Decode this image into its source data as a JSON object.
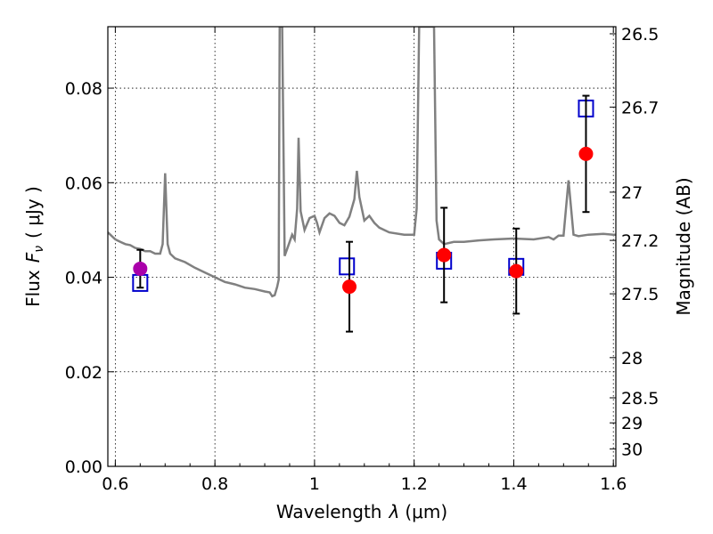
{
  "chart_data": {
    "type": "scatter",
    "xlabel": "Wavelength",
    "xlabel_symbol": "λ",
    "xlabel_unit": "(μm)",
    "ylabel": "Flux",
    "ylabel_symbol": "F",
    "ylabel_subscript": "ν",
    "ylabel_unit": "( μJy )",
    "y2label": "Magnitude (AB)",
    "xlim": [
      0.585,
      1.605
    ],
    "ylim": [
      0.0,
      0.093
    ],
    "grid": true,
    "x_ticks": [
      {
        "value": 0.6,
        "label": "0.6"
      },
      {
        "value": 0.8,
        "label": "0.8"
      },
      {
        "value": 1.0,
        "label": "1"
      },
      {
        "value": 1.2,
        "label": "1.2"
      },
      {
        "value": 1.4,
        "label": "1.4"
      },
      {
        "value": 1.6,
        "label": "1.6"
      }
    ],
    "y_ticks": [
      {
        "value": 0.0,
        "label": "0.00"
      },
      {
        "value": 0.02,
        "label": "0.02"
      },
      {
        "value": 0.04,
        "label": "0.04"
      },
      {
        "value": 0.06,
        "label": "0.06"
      },
      {
        "value": 0.08,
        "label": "0.08"
      }
    ],
    "y2_ticks": [
      {
        "flux": 0.0915,
        "label": "26.5"
      },
      {
        "flux": 0.076,
        "label": "26.7"
      },
      {
        "flux": 0.058,
        "label": "27"
      },
      {
        "flux": 0.0478,
        "label": "27.2"
      },
      {
        "flux": 0.0365,
        "label": "27.5"
      },
      {
        "flux": 0.023,
        "label": "28"
      },
      {
        "flux": 0.0145,
        "label": "28.5"
      },
      {
        "flux": 0.0092,
        "label": "29"
      },
      {
        "flux": 0.0037,
        "label": "30"
      }
    ],
    "series": [
      {
        "name": "model spectrum",
        "kind": "line",
        "color": "#808080",
        "x": [
          0.585,
          0.59,
          0.6,
          0.61,
          0.62,
          0.63,
          0.64,
          0.65,
          0.66,
          0.67,
          0.68,
          0.69,
          0.695,
          0.7,
          0.705,
          0.71,
          0.72,
          0.74,
          0.76,
          0.78,
          0.8,
          0.82,
          0.84,
          0.86,
          0.88,
          0.9,
          0.91,
          0.915,
          0.92,
          0.925,
          0.928,
          0.93,
          0.935,
          0.94,
          0.945,
          0.95,
          0.955,
          0.96,
          0.965,
          0.968,
          0.972,
          0.98,
          0.99,
          1.0,
          1.005,
          1.01,
          1.02,
          1.03,
          1.04,
          1.05,
          1.06,
          1.07,
          1.08,
          1.085,
          1.09,
          1.1,
          1.11,
          1.12,
          1.125,
          1.13,
          1.15,
          1.18,
          1.2,
          1.205,
          1.21,
          1.215,
          1.225,
          1.235,
          1.24,
          1.245,
          1.25,
          1.26,
          1.28,
          1.3,
          1.33,
          1.36,
          1.4,
          1.44,
          1.47,
          1.48,
          1.49,
          1.5,
          1.51,
          1.52,
          1.53,
          1.55,
          1.58,
          1.6,
          1.605
        ],
        "y": [
          0.0495,
          0.049,
          0.048,
          0.0475,
          0.047,
          0.0468,
          0.0462,
          0.046,
          0.0455,
          0.0455,
          0.045,
          0.045,
          0.047,
          0.062,
          0.047,
          0.045,
          0.044,
          0.0432,
          0.042,
          0.041,
          0.04,
          0.039,
          0.0385,
          0.0378,
          0.0375,
          0.037,
          0.0368,
          0.036,
          0.0362,
          0.038,
          0.0395,
          0.093,
          0.093,
          0.0445,
          0.046,
          0.0475,
          0.049,
          0.048,
          0.0545,
          0.0695,
          0.054,
          0.05,
          0.0525,
          0.053,
          0.0515,
          0.0495,
          0.0525,
          0.0535,
          0.053,
          0.0515,
          0.051,
          0.0528,
          0.0565,
          0.0625,
          0.057,
          0.052,
          0.053,
          0.0515,
          0.051,
          0.0505,
          0.0495,
          0.049,
          0.049,
          0.0545,
          0.093,
          0.093,
          0.093,
          0.093,
          0.093,
          0.052,
          0.048,
          0.047,
          0.0475,
          0.0475,
          0.0478,
          0.048,
          0.0482,
          0.048,
          0.0485,
          0.048,
          0.0488,
          0.0488,
          0.0605,
          0.049,
          0.0487,
          0.049,
          0.0492,
          0.049,
          0.049
        ]
      },
      {
        "name": "model photometry",
        "kind": "open-square",
        "color": "#0000cc",
        "x": [
          0.65,
          1.065,
          1.26,
          1.405,
          1.545
        ],
        "y": [
          0.0388,
          0.0423,
          0.0435,
          0.0422,
          0.0757
        ]
      },
      {
        "name": "observed photometry",
        "kind": "filled-circle",
        "color": "#ff0000",
        "x": [
          1.07,
          1.26,
          1.405,
          1.545
        ],
        "y": [
          0.038,
          0.0447,
          0.0413,
          0.0661
        ],
        "yerr": [
          0.0095,
          0.01,
          0.009,
          0.0123
        ]
      },
      {
        "name": "optical point",
        "kind": "filled-circle",
        "color": "#aa00aa",
        "x": [
          0.65
        ],
        "y": [
          0.0418
        ],
        "yerr": [
          0.004
        ]
      }
    ]
  }
}
